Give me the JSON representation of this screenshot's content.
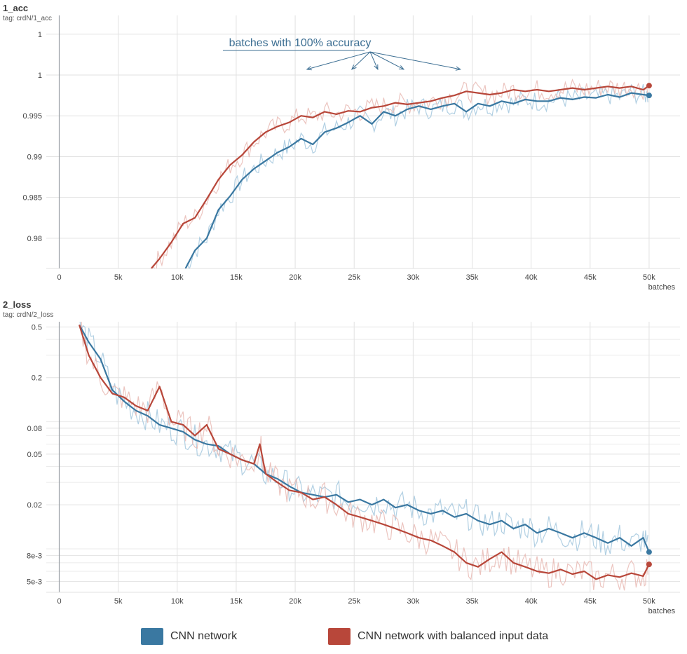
{
  "colors": {
    "cnn": "#3a78a1",
    "balanced": "#b8473a",
    "cnn_raw": "#9fc4dc",
    "balanced_raw": "#e7b7b0"
  },
  "legend": {
    "items": [
      {
        "label": "CNN network",
        "color": "#3a78a1"
      },
      {
        "label": "CNN network with balanced input data",
        "color": "#b8473a"
      }
    ]
  },
  "chart_data": [
    {
      "type": "line",
      "title": "1_acc",
      "tag": "tag: crdN/1_acc",
      "xlabel": "batches",
      "x_ticks": [
        "0",
        "5k",
        "10k",
        "15k",
        "20k",
        "25k",
        "30k",
        "35k",
        "40k",
        "45k",
        "50k"
      ],
      "x_tick_values": [
        0,
        5000,
        10000,
        15000,
        20000,
        25000,
        30000,
        35000,
        40000,
        45000,
        50000
      ],
      "y_ticks": [
        "0.98",
        "0.985",
        "0.99",
        "0.995",
        "1",
        "1"
      ],
      "y_tick_values": [
        0.98,
        0.985,
        0.99,
        0.995,
        1.0,
        1.005
      ],
      "xlim": [
        -1100,
        52500
      ],
      "ylim": [
        0.9763,
        1.0073
      ],
      "annotation": {
        "text": "batches with 100% accuracy",
        "targets_x": [
          21000,
          24800,
          27000,
          29200,
          34000
        ]
      },
      "series": [
        {
          "name": "CNN network",
          "color_key": "cnn",
          "x": [
            10700,
            11500,
            12500,
            13500,
            14500,
            15500,
            16500,
            17500,
            18500,
            19500,
            20500,
            21500,
            22500,
            23500,
            24500,
            25500,
            26500,
            27500,
            28500,
            29500,
            30500,
            31500,
            32500,
            33500,
            34500,
            35500,
            36500,
            37500,
            38500,
            39500,
            40500,
            41500,
            42500,
            43500,
            44500,
            45500,
            46500,
            47500,
            48500,
            49500,
            50000
          ],
          "y": [
            0.9763,
            0.9785,
            0.98,
            0.9835,
            0.9852,
            0.9872,
            0.9885,
            0.9895,
            0.9905,
            0.9912,
            0.9922,
            0.9915,
            0.993,
            0.9935,
            0.9942,
            0.995,
            0.994,
            0.9955,
            0.995,
            0.9958,
            0.9962,
            0.9958,
            0.9962,
            0.9965,
            0.9955,
            0.9965,
            0.9962,
            0.9968,
            0.9965,
            0.997,
            0.9968,
            0.9968,
            0.9972,
            0.997,
            0.9973,
            0.9972,
            0.9976,
            0.9973,
            0.9978,
            0.9976,
            0.9975
          ]
        },
        {
          "name": "CNN network with balanced input data",
          "color_key": "balanced",
          "x": [
            7800,
            8500,
            9500,
            10500,
            11500,
            12500,
            13500,
            14500,
            15500,
            16500,
            17500,
            18500,
            19500,
            20500,
            21500,
            22500,
            23500,
            24500,
            25500,
            26500,
            27500,
            28500,
            29500,
            30500,
            31500,
            32500,
            33500,
            34500,
            35500,
            36500,
            37500,
            38500,
            39500,
            40500,
            41500,
            42500,
            43500,
            44500,
            45500,
            46500,
            47500,
            48500,
            49500,
            50000
          ],
          "y": [
            0.9763,
            0.9775,
            0.9795,
            0.9818,
            0.9825,
            0.9848,
            0.9872,
            0.989,
            0.9902,
            0.9918,
            0.993,
            0.9937,
            0.9942,
            0.995,
            0.9948,
            0.9955,
            0.9952,
            0.9956,
            0.9955,
            0.996,
            0.9962,
            0.9966,
            0.9964,
            0.9966,
            0.9968,
            0.9972,
            0.9975,
            0.998,
            0.9978,
            0.9976,
            0.9978,
            0.9982,
            0.998,
            0.9982,
            0.998,
            0.9982,
            0.9984,
            0.9982,
            0.9984,
            0.9986,
            0.9984,
            0.9986,
            0.9982,
            0.9987
          ]
        }
      ]
    },
    {
      "type": "line",
      "title": "2_loss",
      "tag": "tag: crdN/2_loss",
      "xlabel": "batches",
      "yscale": "log",
      "x_ticks": [
        "0",
        "5k",
        "10k",
        "15k",
        "20k",
        "25k",
        "30k",
        "35k",
        "40k",
        "45k",
        "50k"
      ],
      "x_tick_values": [
        0,
        5000,
        10000,
        15000,
        20000,
        25000,
        30000,
        35000,
        40000,
        45000,
        50000
      ],
      "y_ticks": [
        "5e-3",
        "8e-3",
        "0.02",
        "0.05",
        "0.08",
        "0.2",
        "0.5"
      ],
      "y_tick_values": [
        0.005,
        0.008,
        0.02,
        0.05,
        0.08,
        0.2,
        0.5
      ],
      "xlim": [
        -1100,
        52500
      ],
      "ylim": [
        0.0041,
        0.55
      ],
      "series": [
        {
          "name": "CNN network",
          "color_key": "cnn",
          "x": [
            1700,
            2500,
            3500,
            4500,
            5500,
            6500,
            7500,
            8500,
            9500,
            10500,
            11500,
            12500,
            13500,
            14500,
            15500,
            16500,
            17500,
            18500,
            19500,
            20500,
            21500,
            22500,
            23500,
            24500,
            25500,
            26500,
            27500,
            28500,
            29500,
            30500,
            31500,
            32500,
            33500,
            34500,
            35500,
            36500,
            37500,
            38500,
            39500,
            40500,
            41500,
            42500,
            43500,
            44500,
            45500,
            46500,
            47500,
            48500,
            49500,
            50000
          ],
          "y": [
            0.52,
            0.38,
            0.28,
            0.16,
            0.13,
            0.11,
            0.1,
            0.085,
            0.08,
            0.075,
            0.065,
            0.06,
            0.058,
            0.05,
            0.045,
            0.042,
            0.035,
            0.032,
            0.028,
            0.025,
            0.024,
            0.023,
            0.024,
            0.021,
            0.022,
            0.02,
            0.022,
            0.019,
            0.02,
            0.018,
            0.017,
            0.018,
            0.016,
            0.017,
            0.015,
            0.014,
            0.015,
            0.013,
            0.014,
            0.012,
            0.013,
            0.012,
            0.011,
            0.012,
            0.011,
            0.01,
            0.011,
            0.0095,
            0.011,
            0.0085
          ]
        },
        {
          "name": "CNN network with balanced input data",
          "color_key": "balanced",
          "x": [
            1700,
            2500,
            3500,
            4500,
            5500,
            6500,
            7500,
            8500,
            9500,
            10500,
            11500,
            12500,
            13500,
            14500,
            15500,
            16500,
            17000,
            17500,
            18500,
            19500,
            20500,
            21500,
            22500,
            23500,
            24500,
            25500,
            26500,
            27500,
            28500,
            29500,
            30500,
            31500,
            32500,
            33500,
            34500,
            35500,
            36500,
            37500,
            38500,
            39500,
            40500,
            41500,
            42500,
            43500,
            44500,
            45500,
            46500,
            47500,
            48500,
            49500,
            50000
          ],
          "y": [
            0.52,
            0.3,
            0.2,
            0.15,
            0.14,
            0.12,
            0.11,
            0.17,
            0.09,
            0.085,
            0.07,
            0.085,
            0.055,
            0.05,
            0.045,
            0.042,
            0.06,
            0.035,
            0.03,
            0.026,
            0.025,
            0.022,
            0.023,
            0.02,
            0.017,
            0.016,
            0.015,
            0.014,
            0.013,
            0.012,
            0.011,
            0.0105,
            0.0095,
            0.0085,
            0.007,
            0.0065,
            0.0075,
            0.0085,
            0.007,
            0.0065,
            0.006,
            0.0058,
            0.0062,
            0.0057,
            0.006,
            0.0052,
            0.0056,
            0.0054,
            0.0058,
            0.0055,
            0.0068
          ]
        }
      ]
    }
  ]
}
